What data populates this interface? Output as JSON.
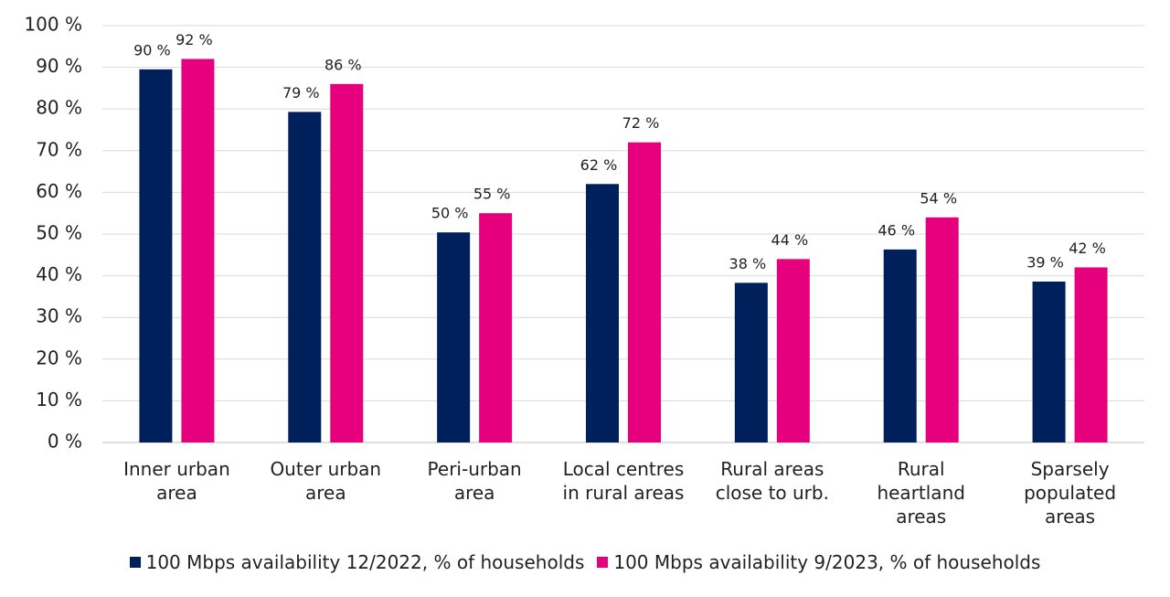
{
  "chart_data": {
    "type": "bar",
    "categories": [
      "Inner urban\narea",
      "Outer urban\narea",
      "Peri-urban\narea",
      "Local centres\nin rural areas",
      "Rural areas\nclose to urb.",
      "Rural\nheartland\nareas",
      "Sparsely\npopulated\nareas"
    ],
    "series": [
      {
        "name": "100 Mbps availability 12/2022, % of households",
        "color": "#00205b",
        "values": [
          89.5,
          79.3,
          50.4,
          62,
          38.3,
          46.3,
          38.6
        ],
        "value_labels": [
          "90 %",
          "79 %",
          "50 %",
          "62 %",
          "38 %",
          "46 %",
          "39 %"
        ]
      },
      {
        "name": "100 Mbps availability 9/2023, % of households",
        "color": "#e6007e",
        "values": [
          92,
          86,
          55,
          72,
          44,
          54,
          42
        ],
        "value_labels": [
          "92 %",
          "86 %",
          "55 %",
          "72 %",
          "44 %",
          "54 %",
          "42 %"
        ]
      }
    ],
    "ylim": [
      0,
      100
    ],
    "yticks": [
      {
        "value": 0,
        "label": "0 %"
      },
      {
        "value": 10,
        "label": "10 %"
      },
      {
        "value": 20,
        "label": "20 %"
      },
      {
        "value": 30,
        "label": "30 %"
      },
      {
        "value": 40,
        "label": "40 %"
      },
      {
        "value": 50,
        "label": "50 %"
      },
      {
        "value": 60,
        "label": "60 %"
      },
      {
        "value": 70,
        "label": "70 %"
      },
      {
        "value": 80,
        "label": "80 %"
      },
      {
        "value": 90,
        "label": "90 %"
      },
      {
        "value": 100,
        "label": "100 %"
      }
    ],
    "grid": true
  }
}
